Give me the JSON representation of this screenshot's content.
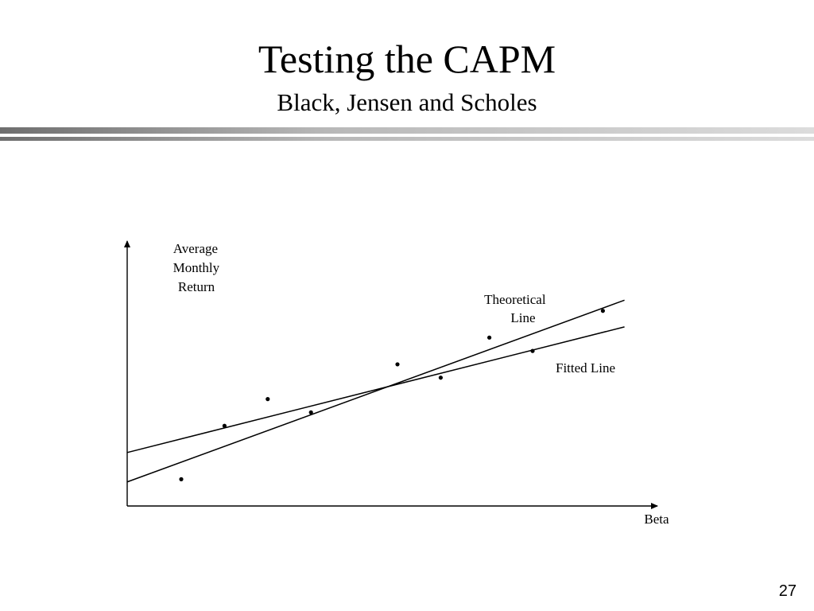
{
  "slide": {
    "title": "Testing the CAPM",
    "subtitle": "Black, Jensen and Scholes",
    "page_number": "27"
  },
  "chart_data": {
    "type": "scatter",
    "x_axis_label": "Beta",
    "y_axis_label_lines": [
      "Average",
      "Monthly",
      "Return"
    ],
    "points": [
      {
        "x": 0.1,
        "y": 0.1
      },
      {
        "x": 0.18,
        "y": 0.3
      },
      {
        "x": 0.26,
        "y": 0.4
      },
      {
        "x": 0.34,
        "y": 0.35
      },
      {
        "x": 0.5,
        "y": 0.53
      },
      {
        "x": 0.58,
        "y": 0.48
      },
      {
        "x": 0.67,
        "y": 0.63
      },
      {
        "x": 0.75,
        "y": 0.58
      },
      {
        "x": 0.88,
        "y": 0.73
      }
    ],
    "lines": [
      {
        "label_lines": [
          "Theoretical",
          "Line"
        ],
        "from": {
          "x": 0.0,
          "y": 0.09
        },
        "to": {
          "x": 0.92,
          "y": 0.77
        }
      },
      {
        "label_lines": [
          "Fitted Line"
        ],
        "from": {
          "x": 0.0,
          "y": 0.2
        },
        "to": {
          "x": 0.92,
          "y": 0.67
        }
      }
    ],
    "xlim": [
      0,
      1
    ],
    "ylim": [
      0,
      1
    ],
    "grid": false,
    "colors": {
      "ink": "#000000"
    }
  }
}
